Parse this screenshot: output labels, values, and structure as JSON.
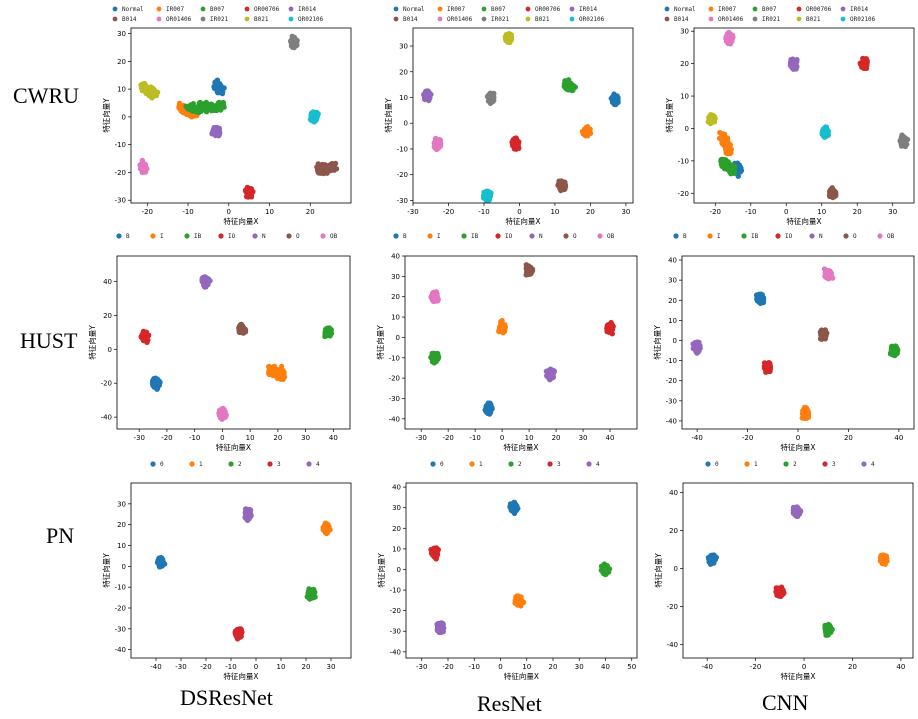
{
  "row_labels": [
    "CWRU",
    "HUST",
    "PN"
  ],
  "col_labels": [
    "DSResNet",
    "ResNet",
    "CNN"
  ],
  "axis_labels": {
    "x": "特征向量X",
    "y": "特征向量Y"
  },
  "legends": {
    "CWRU": {
      "names": [
        "Normal",
        "IR007",
        "B007",
        "OR00706",
        "IR014",
        "B014",
        "OR01406",
        "IR021",
        "B021",
        "OR02106"
      ],
      "colors": [
        "#1f77b4",
        "#ff7f0e",
        "#2ca02c",
        "#d62728",
        "#9467bd",
        "#8c564b",
        "#e377c2",
        "#7f7f7f",
        "#bcbd22",
        "#17becf"
      ]
    },
    "HUST": {
      "names": [
        "B",
        "I",
        "IB",
        "IO",
        "N",
        "O",
        "OB"
      ],
      "colors": [
        "#1f77b4",
        "#ff7f0e",
        "#2ca02c",
        "#d62728",
        "#9467bd",
        "#8c564b",
        "#e377c2"
      ]
    },
    "PN": {
      "names": [
        "0",
        "1",
        "2",
        "3",
        "4"
      ],
      "colors": [
        "#1f77b4",
        "#ff7f0e",
        "#2ca02c",
        "#d62728",
        "#9467bd"
      ]
    }
  },
  "chart_data": [
    {
      "type": "scatter",
      "dataset": "CWRU",
      "model": "DSResNet",
      "xlabel": "特征向量X",
      "ylabel": "特征向量Y",
      "xlim": [
        -24,
        30
      ],
      "ylim": [
        -31,
        32
      ],
      "xticks": [
        -20,
        -10,
        0,
        10,
        20
      ],
      "yticks": [
        -30,
        -20,
        -10,
        0,
        10,
        20,
        30
      ],
      "clusters": [
        {
          "class": "Normal",
          "x": -2,
          "y": 10,
          "x2": -3,
          "y2": 11
        },
        {
          "class": "IR007",
          "x": -12,
          "y": 3,
          "x2": -8,
          "y2": 1
        },
        {
          "class": "B007",
          "x": -1,
          "y": 4,
          "x2": -10,
          "y2": 3
        },
        {
          "class": "OR00706",
          "x": 5,
          "y": -27
        },
        {
          "class": "IR014",
          "x": -3,
          "y": -5
        },
        {
          "class": "B014",
          "x": 26,
          "y": -18,
          "x2": 22,
          "y2": -19
        },
        {
          "class": "OR01406",
          "x": -21,
          "y": -18
        },
        {
          "class": "IR021",
          "x": 16,
          "y": 27
        },
        {
          "class": "B021",
          "x": -21,
          "y": 11,
          "x2": -18,
          "y2": 8
        },
        {
          "class": "OR02106",
          "x": 21,
          "y": 0
        }
      ]
    },
    {
      "type": "scatter",
      "dataset": "CWRU",
      "model": "ResNet",
      "xlabel": "特征向量X",
      "ylabel": "特征向量Y",
      "xlim": [
        -30,
        32
      ],
      "ylim": [
        -31,
        37
      ],
      "xticks": [
        -30,
        -20,
        -10,
        0,
        10,
        20,
        30
      ],
      "yticks": [
        -30,
        -20,
        -10,
        0,
        10,
        20,
        30
      ],
      "clusters": [
        {
          "class": "Normal",
          "x": 27,
          "y": 9
        },
        {
          "class": "IR007",
          "x": 19,
          "y": -3
        },
        {
          "class": "B007",
          "x": 13,
          "y": 15,
          "x2": 15,
          "y2": 14
        },
        {
          "class": "OR00706",
          "x": -1,
          "y": -8
        },
        {
          "class": "IR014",
          "x": -26,
          "y": 11
        },
        {
          "class": "B014",
          "x": 12,
          "y": -24
        },
        {
          "class": "OR01406",
          "x": -23,
          "y": -8
        },
        {
          "class": "IR021",
          "x": -8,
          "y": 10
        },
        {
          "class": "B021",
          "x": -3,
          "y": 33
        },
        {
          "class": "OR02106",
          "x": -9,
          "y": -28
        }
      ]
    },
    {
      "type": "scatter",
      "dataset": "CWRU",
      "model": "CNN",
      "xlabel": "特征向量X",
      "ylabel": "特征向量Y",
      "xlim": [
        -26,
        36
      ],
      "ylim": [
        -23,
        31
      ],
      "xticks": [
        -20,
        -10,
        0,
        10,
        20,
        30
      ],
      "yticks": [
        -20,
        -10,
        0,
        10,
        20,
        30
      ],
      "clusters": [
        {
          "class": "Normal",
          "x": -13,
          "y": -13,
          "x2": -15,
          "y2": -12
        },
        {
          "class": "IR007",
          "x": -18,
          "y": -2,
          "x2": -16,
          "y2": -7
        },
        {
          "class": "B007",
          "x": -15,
          "y": -13,
          "x2": -18,
          "y2": -10
        },
        {
          "class": "OR00706",
          "x": 22,
          "y": 20
        },
        {
          "class": "IR014",
          "x": 2,
          "y": 20
        },
        {
          "class": "B014",
          "x": 13,
          "y": -20
        },
        {
          "class": "OR01406",
          "x": -16,
          "y": 28
        },
        {
          "class": "IR021",
          "x": 33,
          "y": -4
        },
        {
          "class": "B021",
          "x": -21,
          "y": 3
        },
        {
          "class": "OR02106",
          "x": 11,
          "y": -1
        }
      ]
    },
    {
      "type": "scatter",
      "dataset": "HUST",
      "model": "DSResNet",
      "xlabel": "特征向量X",
      "ylabel": "特征向量Y",
      "xlim": [
        -38,
        46
      ],
      "ylim": [
        -47,
        55
      ],
      "xticks": [
        -30,
        -20,
        -10,
        0,
        10,
        20,
        30,
        40
      ],
      "yticks": [
        -40,
        -20,
        0,
        20,
        40
      ],
      "clusters": [
        {
          "class": "B",
          "x": -24,
          "y": -20
        },
        {
          "class": "I",
          "x": 22,
          "y": -15,
          "x2": 17,
          "y2": -12
        },
        {
          "class": "IB",
          "x": 38,
          "y": 10
        },
        {
          "class": "IO",
          "x": -28,
          "y": 8
        },
        {
          "class": "N",
          "x": -6,
          "y": 40
        },
        {
          "class": "O",
          "x": 7,
          "y": 12
        },
        {
          "class": "OB",
          "x": 0,
          "y": -38
        }
      ]
    },
    {
      "type": "scatter",
      "dataset": "HUST",
      "model": "ResNet",
      "xlabel": "特征向量X",
      "ylabel": "特征向量Y",
      "xlim": [
        -36,
        50
      ],
      "ylim": [
        -45,
        40
      ],
      "xticks": [
        -30,
        -20,
        -10,
        0,
        10,
        20,
        30,
        40
      ],
      "yticks": [
        -40,
        -30,
        -20,
        -10,
        0,
        10,
        20,
        30,
        40
      ],
      "clusters": [
        {
          "class": "B",
          "x": -5,
          "y": -35
        },
        {
          "class": "I",
          "x": 0,
          "y": 5
        },
        {
          "class": "IB",
          "x": -25,
          "y": -10
        },
        {
          "class": "IO",
          "x": 40,
          "y": 5
        },
        {
          "class": "N",
          "x": 18,
          "y": -18
        },
        {
          "class": "O",
          "x": 10,
          "y": 33
        },
        {
          "class": "OB",
          "x": -25,
          "y": 20
        }
      ]
    },
    {
      "type": "scatter",
      "dataset": "HUST",
      "model": "CNN",
      "xlabel": "特征向量X",
      "ylabel": "特征向量Y",
      "xlim": [
        -46,
        46
      ],
      "ylim": [
        -44,
        42
      ],
      "xticks": [
        -40,
        -20,
        0,
        20,
        40
      ],
      "yticks": [
        -40,
        -30,
        -20,
        -10,
        0,
        10,
        20,
        30,
        40
      ],
      "clusters": [
        {
          "class": "B",
          "x": -15,
          "y": 21
        },
        {
          "class": "I",
          "x": 3,
          "y": -36
        },
        {
          "class": "IB",
          "x": 38,
          "y": -5
        },
        {
          "class": "IO",
          "x": -12,
          "y": -13
        },
        {
          "class": "N",
          "x": -40,
          "y": -3
        },
        {
          "class": "O",
          "x": 10,
          "y": 3
        },
        {
          "class": "OB",
          "x": 12,
          "y": 33
        }
      ]
    },
    {
      "type": "scatter",
      "dataset": "PN",
      "model": "DSResNet",
      "xlabel": "特征向量X",
      "ylabel": "特征向量Y",
      "xlim": [
        -50,
        38
      ],
      "ylim": [
        -44,
        40
      ],
      "xticks": [
        -40,
        -30,
        -20,
        -10,
        0,
        10,
        20,
        30
      ],
      "yticks": [
        -40,
        -30,
        -20,
        -10,
        0,
        10,
        20,
        30
      ],
      "clusters": [
        {
          "class": "0",
          "x": -38,
          "y": 2
        },
        {
          "class": "1",
          "x": 28,
          "y": 18
        },
        {
          "class": "2",
          "x": 22,
          "y": -13
        },
        {
          "class": "3",
          "x": -7,
          "y": -32
        },
        {
          "class": "4",
          "x": -3,
          "y": 25
        }
      ]
    },
    {
      "type": "scatter",
      "dataset": "PN",
      "model": "ResNet",
      "xlabel": "特征向量X",
      "ylabel": "特征向量Y",
      "xlim": [
        -36,
        52
      ],
      "ylim": [
        -43,
        42
      ],
      "xticks": [
        -30,
        -20,
        -10,
        0,
        10,
        20,
        30,
        40,
        50
      ],
      "yticks": [
        -40,
        -30,
        -20,
        -10,
        0,
        10,
        20,
        30,
        40
      ],
      "clusters": [
        {
          "class": "0",
          "x": 5,
          "y": 30
        },
        {
          "class": "1",
          "x": 7,
          "y": -15
        },
        {
          "class": "2",
          "x": 40,
          "y": 0
        },
        {
          "class": "3",
          "x": -25,
          "y": 8
        },
        {
          "class": "4",
          "x": -23,
          "y": -28
        }
      ]
    },
    {
      "type": "scatter",
      "dataset": "PN",
      "model": "CNN",
      "xlabel": "特征向量X",
      "ylabel": "特征向量Y",
      "xlim": [
        -50,
        45
      ],
      "ylim": [
        -47,
        45
      ],
      "xticks": [
        -40,
        -20,
        0,
        20,
        40
      ],
      "yticks": [
        -40,
        -20,
        0,
        20,
        40
      ],
      "clusters": [
        {
          "class": "0",
          "x": -38,
          "y": 5
        },
        {
          "class": "1",
          "x": 33,
          "y": 5
        },
        {
          "class": "2",
          "x": 10,
          "y": -32
        },
        {
          "class": "3",
          "x": -10,
          "y": -12
        },
        {
          "class": "4",
          "x": -3,
          "y": 30
        }
      ]
    }
  ]
}
